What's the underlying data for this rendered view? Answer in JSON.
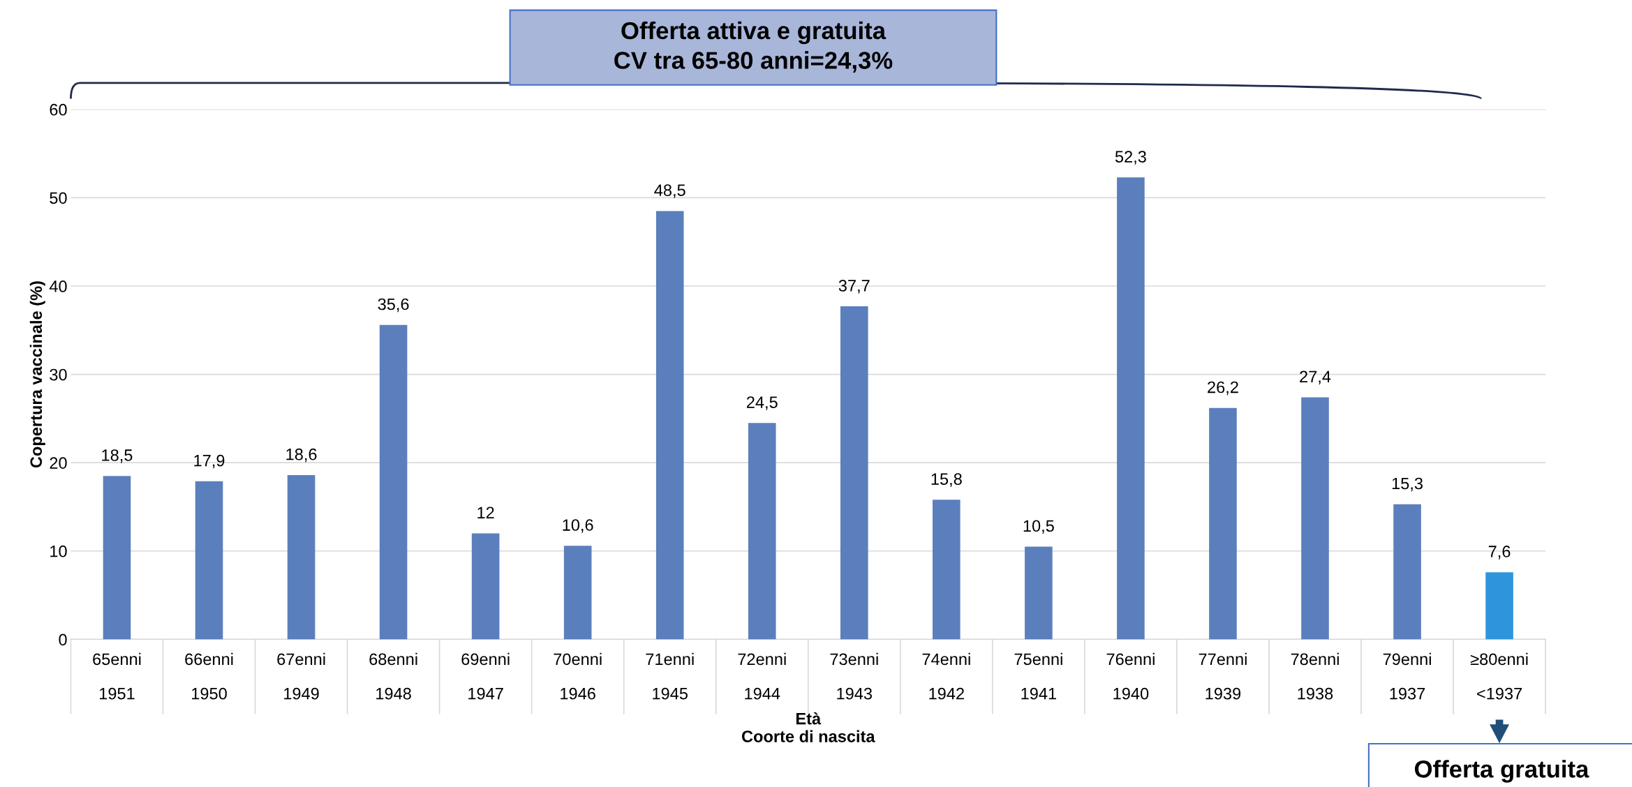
{
  "chart_data": {
    "type": "bar",
    "categories": [
      "65enni\n1951",
      "66enni\n1950",
      "67enni\n1949",
      "68enni\n1948",
      "69enni\n1947",
      "70enni\n1946",
      "71enni\n1945",
      "72enni\n1944",
      "73enni\n1943",
      "74enni\n1942",
      "75enni\n1941",
      "76enni\n1940",
      "77enni\n1939",
      "78enni\n1938",
      "79enni\n1937",
      "≥80enni\n<1937"
    ],
    "values": [
      18.5,
      17.9,
      18.6,
      35.6,
      12,
      10.6,
      48.5,
      24.5,
      37.7,
      15.8,
      10.5,
      52.3,
      26.2,
      27.4,
      15.3,
      7.6
    ],
    "value_labels": [
      "18,5",
      "17,9",
      "18,6",
      "35,6",
      "12",
      "10,6",
      "48,5",
      "24,5",
      "37,7",
      "15,8",
      "10,5",
      "52,3",
      "26,2",
      "27,4",
      "15,3",
      "7,6"
    ],
    "colors": [
      "#5b7fbc",
      "#5b7fbc",
      "#5b7fbc",
      "#5b7fbc",
      "#5b7fbc",
      "#5b7fbc",
      "#5b7fbc",
      "#5b7fbc",
      "#5b7fbc",
      "#5b7fbc",
      "#5b7fbc",
      "#5b7fbc",
      "#5b7fbc",
      "#5b7fbc",
      "#5b7fbc",
      "#2e95dd"
    ],
    "ylim": [
      0,
      60
    ],
    "yticks": [
      0,
      10,
      20,
      30,
      40,
      50,
      60
    ],
    "grid": "y",
    "xlabel": "Età\nCoorte di nascita",
    "ylabel": "Copertura vaccinale (%)",
    "annotations": [
      "Offerta attiva e gratuita\nCV tra 65-80 anni=24,3%",
      "Offerta gratuita"
    ]
  }
}
